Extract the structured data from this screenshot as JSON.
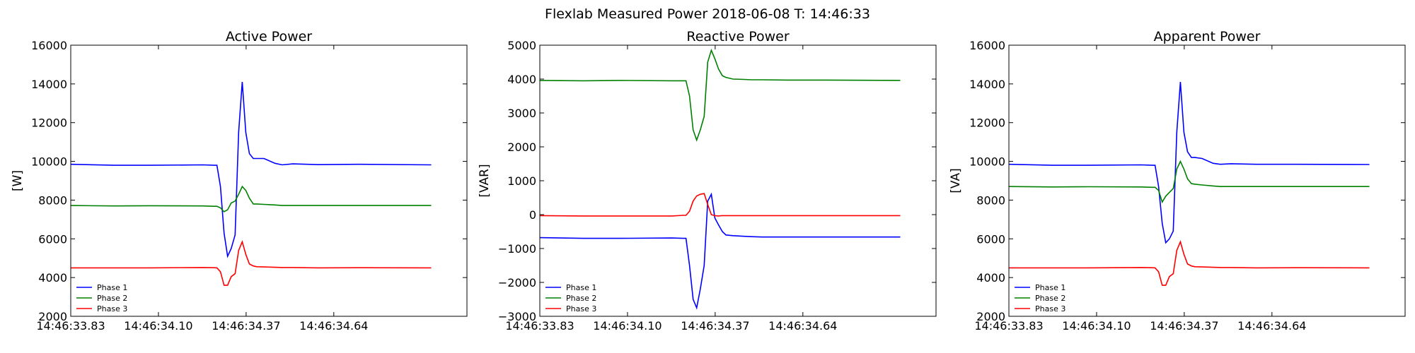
{
  "figure": {
    "suptitle": "Flexlab Measured Power 2018-06-08 T: 14:46:33"
  },
  "colors": {
    "phase_1": "#0000ff",
    "phase_2": "#008000",
    "phase_3": "#ff0000",
    "axes": "#000000",
    "background": "#ffffff"
  },
  "chart_data": [
    {
      "type": "line",
      "title": "Active Power",
      "xlabel": "",
      "ylabel": "[W]",
      "ylim": [
        2000,
        16000
      ],
      "yticks": [
        2000,
        4000,
        6000,
        8000,
        10000,
        12000,
        14000,
        16000
      ],
      "ytick_labels": [
        "2000",
        "4000",
        "6000",
        "8000",
        "10000",
        "12000",
        "14000",
        "16000"
      ],
      "xticks": [
        "14:46:33.83",
        "14:46:34.10",
        "14:46:34.37",
        "14:46:34.64"
      ],
      "grid": false,
      "legend_position": "lower-left",
      "x": [
        "14:46:33.830",
        "14:46:33.964",
        "14:46:34.075",
        "14:46:34.237",
        "14:46:34.271",
        "14:46:34.280",
        "14:46:34.291",
        "14:46:34.302",
        "14:46:34.313",
        "14:46:34.324",
        "14:46:34.336",
        "14:46:34.347",
        "14:46:34.358",
        "14:46:34.369",
        "14:46:34.380",
        "14:46:34.392",
        "14:46:34.403",
        "14:46:34.425",
        "14:46:34.459",
        "14:46:34.481",
        "14:46:34.514",
        "14:46:34.592",
        "14:46:34.715",
        "14:46:34.940"
      ],
      "series": [
        {
          "name": "Phase 1",
          "color": "#0000ff",
          "values": [
            9850,
            9800,
            9800,
            9820,
            9800,
            9800,
            8700,
            6300,
            5100,
            5500,
            6200,
            11500,
            14100,
            11500,
            10400,
            10150,
            10150,
            10150,
            9900,
            9820,
            9870,
            9830,
            9850,
            9820
          ]
        },
        {
          "name": "Phase 2",
          "color": "#008000",
          "values": [
            7720,
            7700,
            7710,
            7700,
            7680,
            7680,
            7600,
            7400,
            7500,
            7850,
            7950,
            8300,
            8700,
            8500,
            8100,
            7800,
            7800,
            7780,
            7750,
            7720,
            7720,
            7720,
            7720,
            7720
          ]
        },
        {
          "name": "Phase 3",
          "color": "#ff0000",
          "values": [
            4500,
            4500,
            4500,
            4520,
            4510,
            4500,
            4300,
            3600,
            3600,
            4050,
            4200,
            5400,
            5850,
            5200,
            4700,
            4600,
            4560,
            4550,
            4530,
            4520,
            4520,
            4500,
            4510,
            4500
          ]
        }
      ]
    },
    {
      "type": "line",
      "title": "Reactive Power",
      "xlabel": "",
      "ylabel": "[VAR]",
      "ylim": [
        -3000,
        5000
      ],
      "yticks": [
        -3000,
        -2000,
        -1000,
        0,
        1000,
        2000,
        3000,
        4000,
        5000
      ],
      "ytick_labels": [
        "−3000",
        "−2000",
        "−1000",
        "0",
        "1000",
        "2000",
        "3000",
        "4000",
        "5000"
      ],
      "xticks": [
        "14:46:33.83",
        "14:46:34.10",
        "14:46:34.37",
        "14:46:34.64"
      ],
      "grid": false,
      "legend_position": "lower-left",
      "x": [
        "14:46:33.830",
        "14:46:33.964",
        "14:46:34.075",
        "14:46:34.237",
        "14:46:34.271",
        "14:46:34.280",
        "14:46:34.291",
        "14:46:34.302",
        "14:46:34.313",
        "14:46:34.324",
        "14:46:34.336",
        "14:46:34.347",
        "14:46:34.358",
        "14:46:34.369",
        "14:46:34.380",
        "14:46:34.392",
        "14:46:34.403",
        "14:46:34.425",
        "14:46:34.459",
        "14:46:34.481",
        "14:46:34.514",
        "14:46:34.592",
        "14:46:34.715",
        "14:46:34.940"
      ],
      "series": [
        {
          "name": "Phase 1",
          "color": "#0000ff",
          "values": [
            -680,
            -700,
            -700,
            -690,
            -700,
            -700,
            -1500,
            -2500,
            -2750,
            -2200,
            -1500,
            400,
            600,
            -100,
            -300,
            -500,
            -600,
            -620,
            -640,
            -650,
            -660,
            -660,
            -660,
            -660
          ]
        },
        {
          "name": "Phase 2",
          "color": "#008000",
          "values": [
            3960,
            3950,
            3960,
            3950,
            3950,
            3950,
            3500,
            2500,
            2200,
            2500,
            2900,
            4500,
            4850,
            4600,
            4300,
            4100,
            4050,
            4000,
            3990,
            3980,
            3980,
            3970,
            3970,
            3960
          ]
        },
        {
          "name": "Phase 3",
          "color": "#ff0000",
          "values": [
            -30,
            -40,
            -40,
            -40,
            -20,
            -20,
            100,
            400,
            550,
            600,
            620,
            300,
            0,
            -30,
            -40,
            -30,
            -30,
            -30,
            -30,
            -30,
            -30,
            -30,
            -30,
            -30
          ]
        }
      ]
    },
    {
      "type": "line",
      "title": "Apparent Power",
      "xlabel": "",
      "ylabel": "[VA]",
      "ylim": [
        2000,
        16000
      ],
      "yticks": [
        2000,
        4000,
        6000,
        8000,
        10000,
        12000,
        14000,
        16000
      ],
      "ytick_labels": [
        "2000",
        "4000",
        "6000",
        "8000",
        "10000",
        "12000",
        "14000",
        "16000"
      ],
      "xticks": [
        "14:46:33.83",
        "14:46:34.10",
        "14:46:34.37",
        "14:46:34.64"
      ],
      "grid": false,
      "legend_position": "lower-left",
      "x": [
        "14:46:33.830",
        "14:46:33.964",
        "14:46:34.075",
        "14:46:34.237",
        "14:46:34.271",
        "14:46:34.280",
        "14:46:34.291",
        "14:46:34.302",
        "14:46:34.313",
        "14:46:34.324",
        "14:46:34.336",
        "14:46:34.347",
        "14:46:34.358",
        "14:46:34.369",
        "14:46:34.380",
        "14:46:34.392",
        "14:46:34.403",
        "14:46:34.425",
        "14:46:34.459",
        "14:46:34.481",
        "14:46:34.514",
        "14:46:34.592",
        "14:46:34.715",
        "14:46:34.940"
      ],
      "series": [
        {
          "name": "Phase 1",
          "color": "#0000ff",
          "values": [
            9850,
            9800,
            9800,
            9820,
            9800,
            9800,
            8700,
            6800,
            5800,
            6000,
            6400,
            11500,
            14100,
            11500,
            10500,
            10200,
            10200,
            10150,
            9900,
            9850,
            9880,
            9850,
            9850,
            9840
          ]
        },
        {
          "name": "Phase 2",
          "color": "#008000",
          "values": [
            8700,
            8680,
            8690,
            8680,
            8660,
            8660,
            8500,
            7900,
            8200,
            8400,
            8600,
            9600,
            10000,
            9600,
            9100,
            8850,
            8820,
            8780,
            8730,
            8700,
            8700,
            8700,
            8700,
            8700
          ]
        },
        {
          "name": "Phase 3",
          "color": "#ff0000",
          "values": [
            4500,
            4500,
            4500,
            4520,
            4510,
            4500,
            4300,
            3600,
            3600,
            4050,
            4200,
            5400,
            5850,
            5200,
            4700,
            4600,
            4560,
            4550,
            4530,
            4520,
            4520,
            4500,
            4510,
            4500
          ]
        }
      ]
    }
  ]
}
